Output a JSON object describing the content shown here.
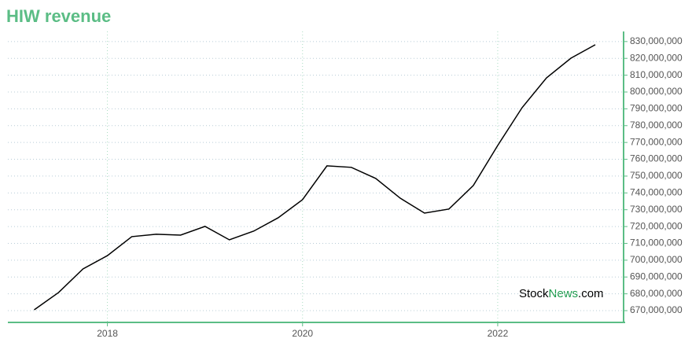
{
  "chart_data": {
    "type": "line",
    "title": "HIW revenue",
    "x": [
      2017.25,
      2017.5,
      2017.75,
      2018,
      2018.25,
      2018.5,
      2018.75,
      2019,
      2019.25,
      2019.5,
      2019.75,
      2020,
      2020.25,
      2020.5,
      2020.75,
      2021,
      2021.25,
      2021.5,
      2021.75,
      2022,
      2022.25,
      2022.5,
      2022.75,
      2023
    ],
    "series": [
      {
        "name": "HIW revenue",
        "color": "#000000",
        "values": [
          670500000,
          680800000,
          694800000,
          702700000,
          714000000,
          715400000,
          714900000,
          720100000,
          712100000,
          717300000,
          725200000,
          736000000,
          756100000,
          755200000,
          748600000,
          736900000,
          728000000,
          730400000,
          744400000,
          768200000,
          790700000,
          808400000,
          820100000,
          828100000
        ]
      }
    ],
    "xlim": [
      2016.98,
      2023.29
    ],
    "xticks": [
      2018,
      2020,
      2022
    ],
    "ylim": [
      663000000,
      836000000
    ],
    "yticks": [
      {
        "value": 670000000,
        "label": "670,000,000"
      },
      {
        "value": 680000000,
        "label": "680,000,000"
      },
      {
        "value": 690000000,
        "label": "690,000,000"
      },
      {
        "value": 700000000,
        "label": "700,000,000"
      },
      {
        "value": 710000000,
        "label": "710,000,000"
      },
      {
        "value": 720000000,
        "label": "720,000,000"
      },
      {
        "value": 730000000,
        "label": "730,000,000"
      },
      {
        "value": 740000000,
        "label": "740,000,000"
      },
      {
        "value": 750000000,
        "label": "750,000,000"
      },
      {
        "value": 760000000,
        "label": "760,000,000"
      },
      {
        "value": 770000000,
        "label": "770,000,000"
      },
      {
        "value": 780000000,
        "label": "780,000,000"
      },
      {
        "value": 790000000,
        "label": "790,000,000"
      },
      {
        "value": 800000000,
        "label": "800,000,000"
      },
      {
        "value": 810000000,
        "label": "810,000,000"
      },
      {
        "value": 820000000,
        "label": "820,000,000"
      },
      {
        "value": 830000000,
        "label": "830,000,000"
      }
    ],
    "grid": true,
    "axis_color": "#5bbd85",
    "watermark": [
      "Stock",
      "News",
      ".com"
    ]
  }
}
